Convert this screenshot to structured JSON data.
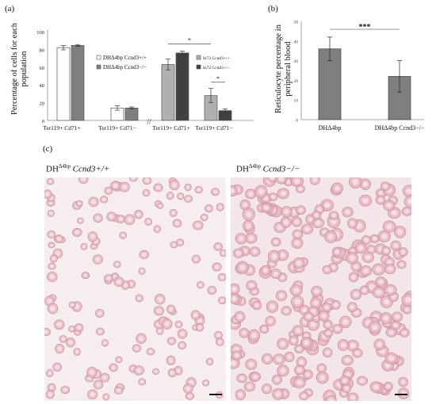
{
  "panels": {
    "a": {
      "label": "(a)"
    },
    "b": {
      "label": "(b)"
    },
    "c": {
      "label": "(c)"
    }
  },
  "chart_data": [
    {
      "type": "bar",
      "panel": "a",
      "ylabel": "Percentage of cells for each population",
      "ylim": [
        0,
        100
      ],
      "yticks": [
        0,
        20,
        40,
        60,
        80,
        100
      ],
      "xlabels": [
        "Ter119+ Cd71+",
        "Ter119+ Cd71−",
        "Ter119+ Cd71+",
        "Ter119+ Cd71−"
      ],
      "axis_break": "//",
      "groups": [
        {
          "legend": [
            "DHΔ4bp Ccnd3+/+",
            "DHΔ4bp Ccnd3−/−"
          ],
          "bars": [
            {
              "category": "Ter119+ Cd71+",
              "series": "Ccnd3+/+",
              "value": 82,
              "err": 2.5,
              "color": "#ffffff"
            },
            {
              "category": "Ter119+ Cd71+",
              "series": "Ccnd3−/−",
              "value": 84.5,
              "err": 1,
              "color": "#7f7f7f"
            },
            {
              "category": "Ter119+ Cd71−",
              "series": "Ccnd3+/+",
              "value": 14,
              "err": 2.5,
              "color": "#ffffff"
            },
            {
              "category": "Ter119+ Cd71−",
              "series": "Ccnd3−/−",
              "value": 14,
              "err": 1.2,
              "color": "#7f7f7f"
            }
          ]
        },
        {
          "legend": [
            "In72 Ccnd3+/+",
            "In72 Ccnd3−/−"
          ],
          "bars": [
            {
              "category": "Ter119+ Cd71+",
              "series": "In72 Ccnd3+/+",
              "value": 63,
              "err": 6,
              "color": "#b0b0b0"
            },
            {
              "category": "Ter119+ Cd71+",
              "series": "In72 Ccnd3−/−",
              "value": 76,
              "err": 2,
              "color": "#404040"
            },
            {
              "category": "Ter119+ Cd71−",
              "series": "In72 Ccnd3+/+",
              "value": 28,
              "err": 8,
              "color": "#b0b0b0"
            },
            {
              "category": "Ter119+ Cd71−",
              "series": "In72 Ccnd3−/−",
              "value": 11,
              "err": 2,
              "color": "#404040"
            }
          ]
        }
      ],
      "significance": [
        "*",
        "*"
      ]
    },
    {
      "type": "bar",
      "panel": "b",
      "ylabel": "Reticulocyte percentage in peripheral blood",
      "ylim": [
        0,
        50
      ],
      "yticks": [
        0,
        10,
        20,
        30,
        40,
        50
      ],
      "categories": [
        "DHΔ4bp",
        "DHΔ4bp Ccnd3−/−"
      ],
      "values": [
        36,
        22
      ],
      "errors": [
        6,
        8
      ],
      "color": "#7f7f7f",
      "significance": "***"
    }
  ],
  "micrographs": {
    "left": {
      "title_base": "DH",
      "title_sup": "Δ4bp",
      "title_gene": "Ccnd3+/+"
    },
    "right": {
      "title_base": "DH",
      "title_sup": "Δ4bp",
      "title_gene": "Ccnd3−/−"
    }
  }
}
